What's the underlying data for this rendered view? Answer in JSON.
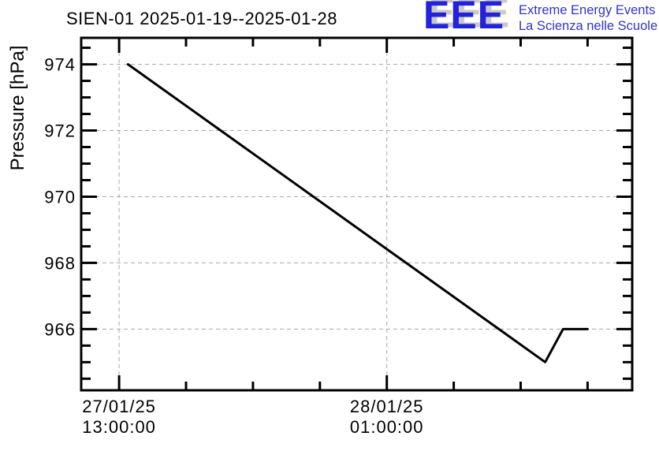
{
  "header": {
    "title": "SIEN-01 2025-01-19--2025-01-28",
    "logo": {
      "acronym": "EEE",
      "line1": "Extreme Energy Events",
      "line2": "La Scienza nelle Scuole",
      "acronym_color": "#2222dd",
      "shadow_color": "#c9c9c9",
      "text_color": "#3333cc"
    }
  },
  "chart_data": {
    "type": "line",
    "title": "SIEN-01 2025-01-19--2025-01-28",
    "station": "SIEN-01",
    "date_range": "2025-01-19--2025-01-28",
    "xlabel": "",
    "ylabel": "Pressure [hPa]",
    "x_unit": "hours since 27/01/25 00:00:00",
    "xlim": [
      11.3,
      36.0
    ],
    "ylim": [
      964.15,
      974.8
    ],
    "y_major_ticks": [
      966,
      968,
      970,
      972,
      974
    ],
    "y_minor_step": 0.5,
    "x_major_ticks": [
      {
        "x": 13,
        "label_line1": "27/01/25",
        "label_line2": "13:00:00"
      },
      {
        "x": 25,
        "label_line1": "28/01/25",
        "label_line2": "01:00:00"
      }
    ],
    "x_minor_step": 3,
    "x_minor_anchor": 13,
    "grid": "dashed-at-major-ticks",
    "grid_color": "#a8a8a8",
    "axis_color": "#000000",
    "line_color": "#000000",
    "legend": "none",
    "series": [
      {
        "name": "SIEN-01 pressure",
        "points": [
          {
            "t_hours": 13.4,
            "hPa": 974.0
          },
          {
            "t_hours": 32.1,
            "hPa": 965.0
          },
          {
            "t_hours": 32.9,
            "hPa": 966.0
          },
          {
            "t_hours": 34.0,
            "hPa": 966.0
          }
        ]
      }
    ]
  }
}
